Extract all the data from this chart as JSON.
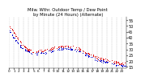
{
  "title": "Milw. Wthr. Outdoor Temp / Dew Point\nby Minute (24 Hours) (Alternate)",
  "title_fontsize": 3.8,
  "bg_color": "#ffffff",
  "grid_color": "#888888",
  "temp_color": "#dd0000",
  "dew_color": "#0000cc",
  "ylim": [
    14,
    58
  ],
  "yticks": [
    15,
    20,
    25,
    30,
    35,
    40,
    45,
    50,
    55
  ],
  "ylabel_fontsize": 3.5,
  "xlabel_fontsize": 3.0,
  "xtick_labels": [
    "0",
    "1",
    "2",
    "3",
    "4",
    "5",
    "6",
    "7",
    "8",
    "9",
    "10",
    "11",
    "12",
    "13",
    "14",
    "15",
    "16",
    "17",
    "18",
    "19",
    "20",
    "21",
    "22",
    "23"
  ],
  "num_points": 300,
  "seed": 7,
  "temp_control_x": [
    0,
    0.5,
    1.0,
    1.5,
    2.0,
    2.5,
    3.0,
    3.5,
    4.0,
    4.5,
    5.0,
    5.5,
    6.0,
    7.0,
    8.0,
    9.0,
    10.0,
    11.0,
    12.0,
    13.0,
    14.0,
    15.0,
    16.0,
    17.0,
    18.0,
    19.0,
    20.0,
    21.0,
    22.0,
    23.0
  ],
  "temp_control_y": [
    50,
    47,
    44,
    41,
    38,
    35,
    33,
    31,
    30,
    29,
    28,
    28,
    29,
    29,
    30,
    31,
    32,
    33,
    33,
    32,
    31,
    29,
    27,
    25,
    23,
    22,
    21,
    20,
    19,
    18
  ],
  "dew_control_y": [
    46,
    43,
    40,
    37,
    34,
    32,
    30,
    29,
    28,
    27,
    26,
    26,
    27,
    27,
    28,
    29,
    30,
    31,
    31,
    30,
    29,
    27,
    25,
    23,
    21,
    20,
    19,
    18,
    17,
    16
  ]
}
